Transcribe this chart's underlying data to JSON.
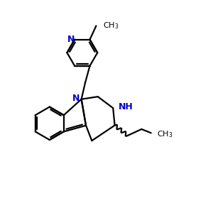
{
  "bg_color": "#ffffff",
  "bond_color": "#000000",
  "N_color": "#0000cc",
  "lw": 1.6,
  "figsize": [
    3.0,
    3.0
  ],
  "dpi": 100,
  "xlim": [
    0,
    10
  ],
  "ylim": [
    0,
    10
  ]
}
